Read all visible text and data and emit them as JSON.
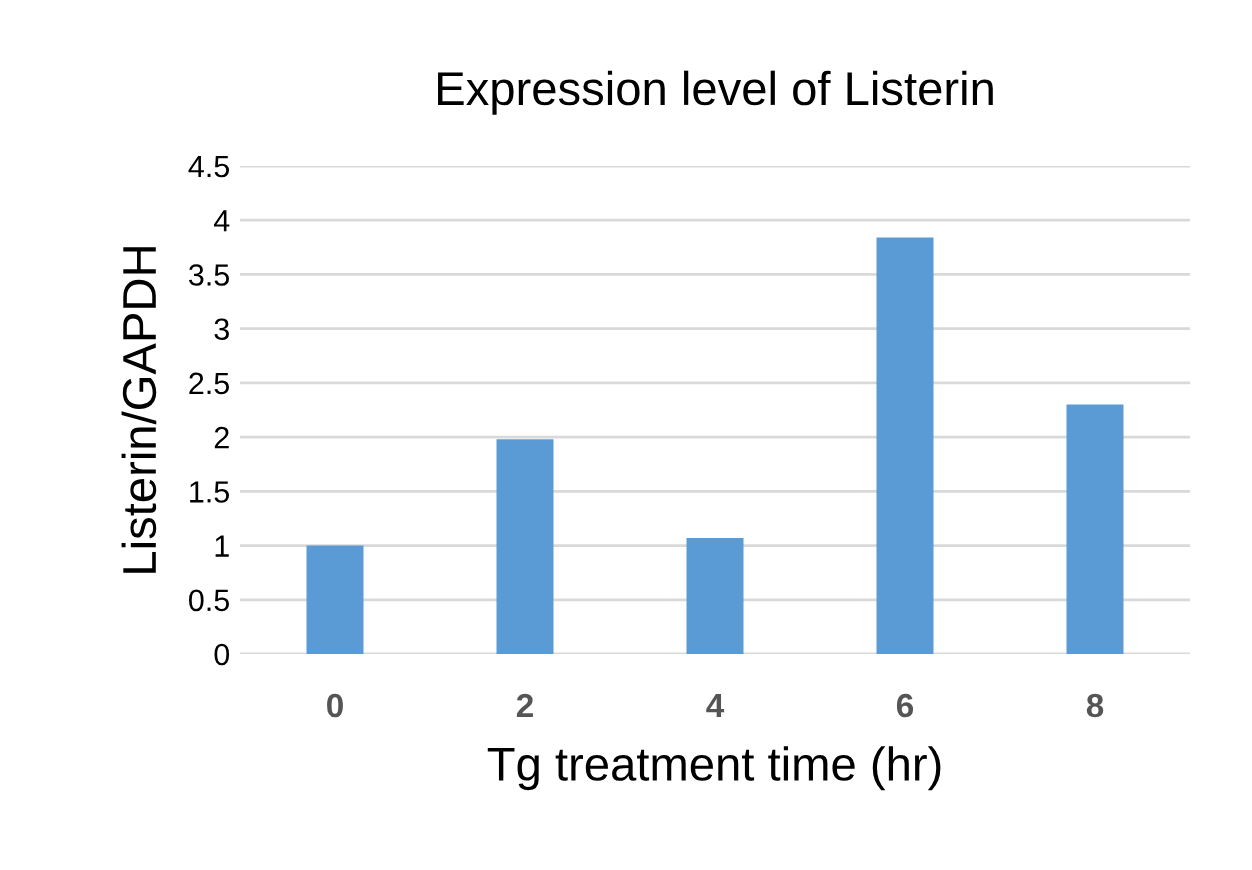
{
  "chart_data": {
    "type": "bar",
    "title": "Expression level of Listerin",
    "xlabel": "Tg treatment time (hr)",
    "ylabel": "Listerin/GAPDH",
    "categories": [
      "0",
      "2",
      "4",
      "6",
      "8"
    ],
    "values": [
      1.0,
      1.98,
      1.07,
      3.84,
      2.3
    ],
    "color": "#5b9bd5",
    "ylim": [
      0,
      4.5
    ],
    "yticks": [
      0,
      0.5,
      1,
      1.5,
      2,
      2.5,
      3,
      3.5,
      4,
      4.5
    ],
    "grid": "y",
    "legend": false
  }
}
